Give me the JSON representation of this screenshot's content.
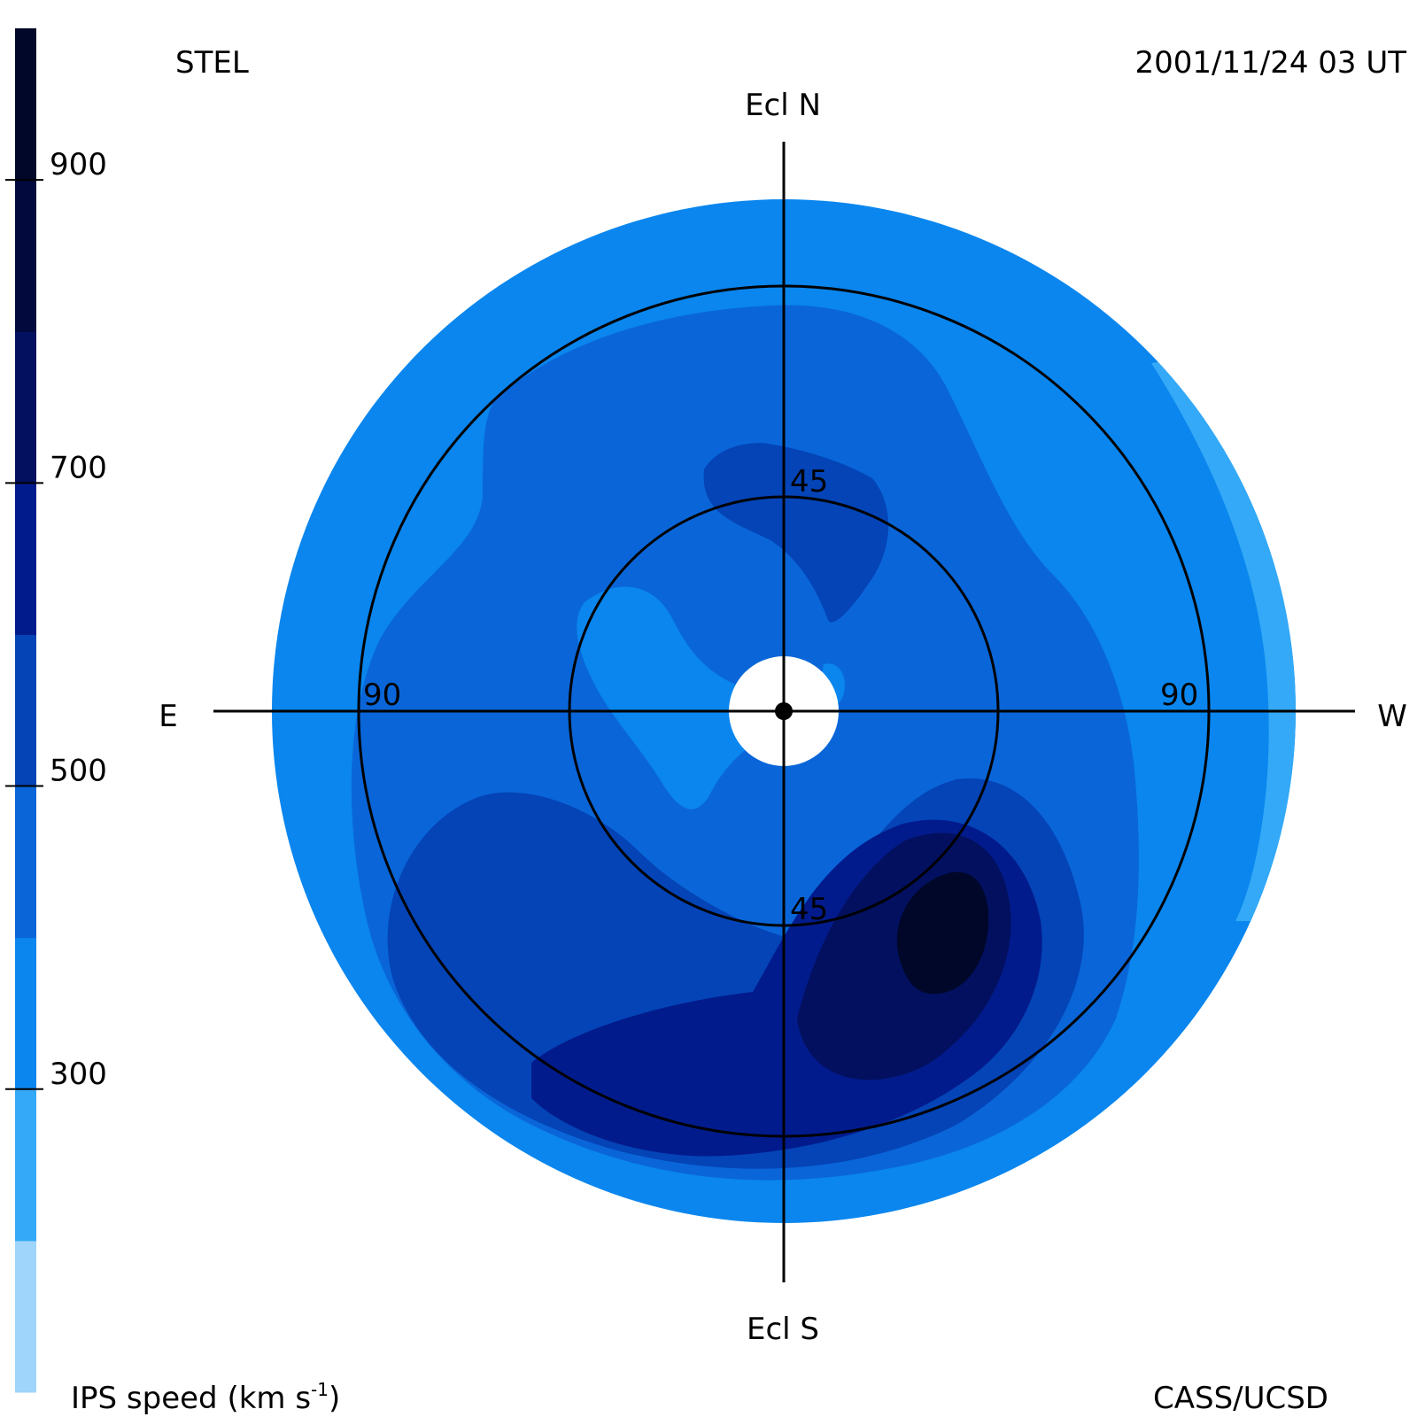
{
  "header": {
    "observatory": "STEL",
    "timestamp": "2001/11/24 03 UT"
  },
  "footer": {
    "colorbar_title": "IPS speed (km s",
    "colorbar_title_exponent": "-1",
    "colorbar_title_close": ")",
    "credit": "CASS/UCSD"
  },
  "directions": {
    "north": "Ecl N",
    "south": "Ecl S",
    "east": "E",
    "west": "W"
  },
  "rings": {
    "inner_north": "45",
    "inner_south": "45",
    "outer_east": "90",
    "outer_west": "90"
  },
  "colorbar": {
    "ticks": [
      "900",
      "700",
      "500",
      "300"
    ],
    "tick_values": [
      900,
      700,
      500,
      300
    ],
    "range": [
      100,
      1000
    ],
    "levels": [
      {
        "from": 100,
        "to": 200,
        "color": "#9fd4fb"
      },
      {
        "from": 200,
        "to": 300,
        "color": "#33a9f7"
      },
      {
        "from": 300,
        "to": 400,
        "color": "#0a86ee"
      },
      {
        "from": 400,
        "to": 500,
        "color": "#0a66d8"
      },
      {
        "from": 500,
        "to": 600,
        "color": "#0444b7"
      },
      {
        "from": 600,
        "to": 700,
        "color": "#021b8c"
      },
      {
        "from": 700,
        "to": 800,
        "color": "#02105f"
      },
      {
        "from": 800,
        "to": 900,
        "color": "#01093d"
      },
      {
        "from": 900,
        "to": 1000,
        "color": "#000728"
      }
    ]
  }
}
